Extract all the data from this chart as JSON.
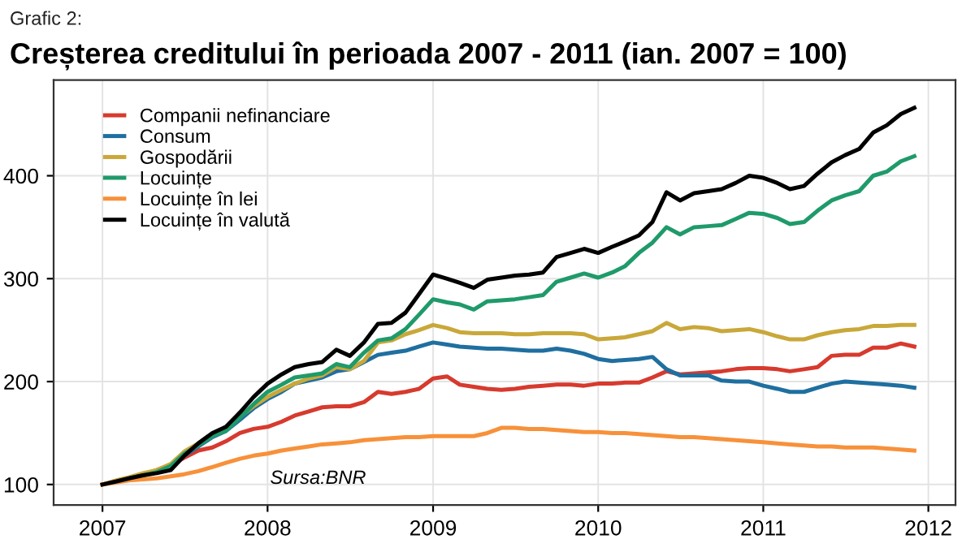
{
  "chart_data": {
    "type": "line",
    "subtitle": "Grafic 2:",
    "title": "Creșterea creditului în perioada 2007 - 2011 (ian. 2007 = 100)",
    "annotations": [
      "Sursa:BNR"
    ],
    "x": [
      "2007-01",
      "2007-02",
      "2007-03",
      "2007-04",
      "2007-05",
      "2007-06",
      "2007-07",
      "2007-08",
      "2007-09",
      "2007-10",
      "2007-11",
      "2007-12",
      "2008-01",
      "2008-02",
      "2008-03",
      "2008-04",
      "2008-05",
      "2008-06",
      "2008-07",
      "2008-08",
      "2008-09",
      "2008-10",
      "2008-11",
      "2008-12",
      "2009-01",
      "2009-02",
      "2009-03",
      "2009-04",
      "2009-05",
      "2009-06",
      "2009-07",
      "2009-08",
      "2009-09",
      "2009-10",
      "2009-11",
      "2009-12",
      "2010-01",
      "2010-02",
      "2010-03",
      "2010-04",
      "2010-05",
      "2010-06",
      "2010-07",
      "2010-08",
      "2010-09",
      "2010-10",
      "2010-11",
      "2010-12",
      "2011-01",
      "2011-02",
      "2011-03",
      "2011-04",
      "2011-05",
      "2011-06",
      "2011-07",
      "2011-08",
      "2011-09",
      "2011-10",
      "2011-11",
      "2011-12"
    ],
    "series": [
      {
        "name": "Companii nefinanciare",
        "color": "#d73a2e",
        "values": [
          100,
          103,
          106,
          109,
          114,
          119,
          126,
          133,
          136,
          142,
          150,
          154,
          156,
          161,
          167,
          171,
          175,
          176,
          176,
          180,
          190,
          188,
          190,
          193,
          203,
          205,
          197,
          195,
          193,
          192,
          193,
          195,
          196,
          197,
          197,
          196,
          198,
          198,
          199,
          199,
          204,
          210,
          207,
          208,
          209,
          210,
          212,
          213,
          213,
          212,
          210,
          212,
          214,
          225,
          226,
          226,
          233,
          233,
          237,
          234
        ]
      },
      {
        "name": "Consum",
        "color": "#1f6fa0",
        "values": [
          null,
          null,
          null,
          null,
          null,
          117,
          128,
          137,
          146,
          152,
          163,
          174,
          183,
          190,
          198,
          201,
          204,
          210,
          212,
          219,
          226,
          228,
          230,
          234,
          238,
          236,
          234,
          233,
          232,
          232,
          231,
          230,
          230,
          232,
          230,
          227,
          222,
          220,
          221,
          222,
          224,
          212,
          206,
          206,
          206,
          201,
          200,
          200,
          196,
          193,
          190,
          190,
          194,
          198,
          200,
          199,
          198,
          197,
          196,
          194
        ]
      },
      {
        "name": "Gospodării",
        "color": "#c9a83a",
        "values": [
          100,
          104,
          107,
          111,
          114,
          120,
          132,
          140,
          149,
          155,
          166,
          176,
          185,
          192,
          198,
          203,
          206,
          214,
          212,
          220,
          238,
          240,
          246,
          250,
          255,
          252,
          248,
          247,
          247,
          247,
          246,
          246,
          247,
          247,
          247,
          246,
          241,
          242,
          243,
          246,
          249,
          257,
          251,
          253,
          252,
          249,
          250,
          251,
          248,
          244,
          241,
          241,
          245,
          248,
          250,
          251,
          254,
          254,
          255,
          255
        ]
      },
      {
        "name": "Locuințe",
        "color": "#1f9a6b",
        "values": [
          null,
          null,
          106,
          109,
          112,
          118,
          130,
          138,
          147,
          152,
          165,
          178,
          190,
          197,
          204,
          206,
          208,
          217,
          214,
          228,
          240,
          242,
          251,
          265,
          280,
          277,
          275,
          270,
          278,
          279,
          280,
          282,
          284,
          297,
          301,
          305,
          301,
          306,
          312,
          325,
          335,
          350,
          343,
          350,
          351,
          352,
          358,
          364,
          363,
          359,
          353,
          355,
          366,
          376,
          381,
          385,
          400,
          404,
          414,
          419
        ]
      },
      {
        "name": "Locuințe în lei",
        "color": "#f7913a",
        "values": [
          100,
          102,
          104,
          105,
          106,
          108,
          110,
          113,
          117,
          121,
          125,
          128,
          130,
          133,
          135,
          137,
          139,
          140,
          141,
          143,
          144,
          145,
          146,
          146,
          147,
          147,
          147,
          147,
          150,
          155,
          155,
          154,
          154,
          153,
          152,
          151,
          151,
          150,
          150,
          149,
          148,
          147,
          146,
          146,
          145,
          144,
          143,
          142,
          141,
          140,
          139,
          138,
          137,
          137,
          136,
          136,
          136,
          135,
          134,
          133
        ]
      },
      {
        "name": "Locuințe în valută",
        "color": "#000000",
        "values": [
          100,
          103,
          106,
          109,
          111,
          114,
          128,
          140,
          150,
          156,
          170,
          185,
          198,
          207,
          214,
          217,
          219,
          231,
          225,
          238,
          256,
          257,
          267,
          285,
          304,
          300,
          296,
          291,
          299,
          301,
          303,
          304,
          306,
          321,
          325,
          329,
          325,
          331,
          336,
          342,
          355,
          384,
          376,
          383,
          385,
          387,
          393,
          400,
          398,
          393,
          387,
          390,
          402,
          413,
          420,
          426,
          442,
          449,
          460,
          466
        ]
      }
    ],
    "xlim": [
      "2006-09-15",
      "2012-03-01"
    ],
    "xticks": [
      {
        "value": "2007",
        "label": "2007"
      },
      {
        "value": "2008",
        "label": "2008"
      },
      {
        "value": "2009",
        "label": "2009"
      },
      {
        "value": "2010",
        "label": "2010"
      },
      {
        "value": "2011",
        "label": "2011"
      },
      {
        "value": "2012",
        "label": "2012"
      }
    ],
    "ylim": [
      80,
      493
    ],
    "yticks": [
      100,
      200,
      300,
      400
    ],
    "grid": true,
    "legend": "top left",
    "marker": "none",
    "line_style": "solid"
  }
}
